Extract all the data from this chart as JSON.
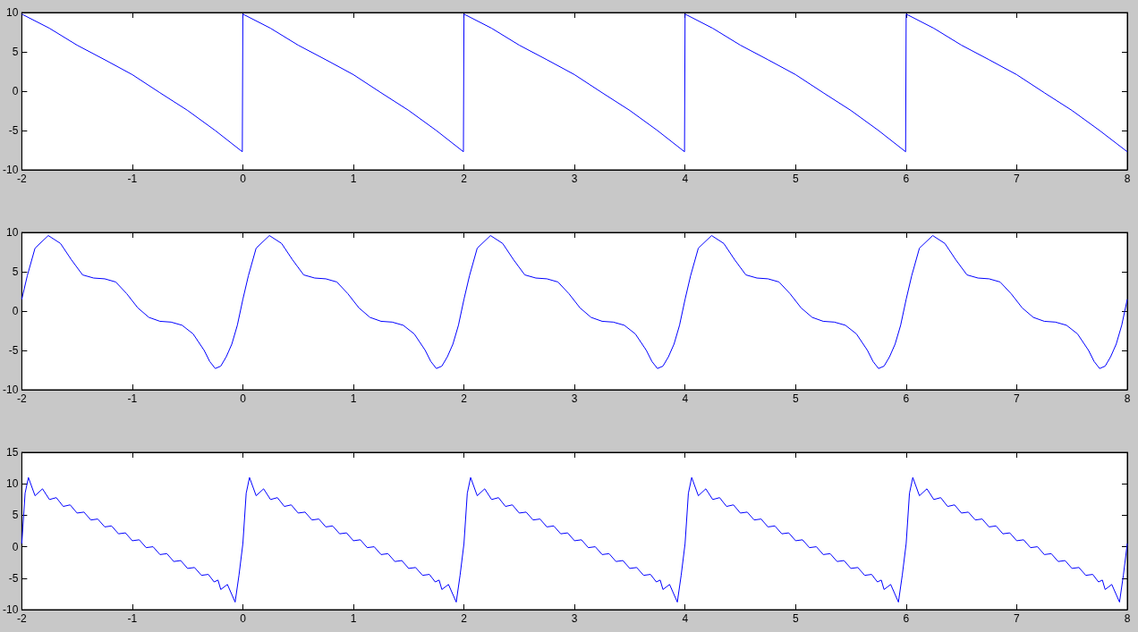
{
  "chart_data": [
    {
      "type": "line",
      "color": "#0000ff",
      "marker": "none",
      "grid": false,
      "xlim": [
        -2,
        8
      ],
      "xticks": [
        -2,
        -1,
        0,
        1,
        2,
        3,
        4,
        5,
        6,
        7,
        8
      ],
      "ylim": [
        -10,
        10
      ],
      "yticks": [
        -10,
        -5,
        0,
        5,
        10
      ],
      "x": [
        -2,
        -1.75,
        -1.5,
        -1.25,
        -1,
        -0.75,
        -0.5,
        -0.25,
        -0.005,
        0,
        0.25,
        0.5,
        0.75,
        1,
        1.25,
        1.5,
        1.75,
        1.995,
        2,
        2.25,
        2.5,
        2.75,
        3,
        3.25,
        3.5,
        3.75,
        3.995,
        4,
        4.25,
        4.5,
        4.75,
        5,
        5.25,
        5.5,
        5.75,
        5.995,
        6,
        6.25,
        6.5,
        6.75,
        7,
        7.25,
        7.5,
        7.75,
        8
      ],
      "values": [
        9.8,
        8.0,
        5.85,
        4.0,
        2.1,
        -0.2,
        -2.45,
        -5.0,
        -7.7,
        9.8,
        8.0,
        5.85,
        4.0,
        2.1,
        -0.2,
        -2.45,
        -5.0,
        -7.7,
        9.8,
        8.0,
        5.85,
        4.0,
        2.1,
        -0.2,
        -2.45,
        -5.0,
        -7.7,
        9.8,
        8.0,
        5.85,
        4.0,
        2.1,
        -0.2,
        -2.45,
        -5.0,
        -7.7,
        9.8,
        8.0,
        5.85,
        4.0,
        2.1,
        -0.2,
        -2.45,
        -5.0,
        -7.7
      ]
    },
    {
      "type": "line",
      "color": "#0000ff",
      "marker": "none",
      "grid": false,
      "xlim": [
        -2,
        8
      ],
      "xticks": [
        -2,
        -1,
        0,
        1,
        2,
        3,
        4,
        5,
        6,
        7,
        8
      ],
      "ylim": [
        -10,
        10
      ],
      "yticks": [
        -10,
        -5,
        0,
        5,
        10
      ],
      "x": [
        -2,
        -1.95,
        -1.88,
        -1.76,
        -1.65,
        -1.55,
        -1.45,
        -1.35,
        -1.25,
        -1.15,
        -1.05,
        -0.95,
        -0.85,
        -0.75,
        -0.65,
        -0.55,
        -0.45,
        -0.35,
        -0.3,
        -0.25,
        -0.2,
        -0.15,
        -0.1,
        -0.05,
        0,
        0.05,
        0.12,
        0.24,
        0.35,
        0.45,
        0.55,
        0.65,
        0.75,
        0.85,
        0.95,
        1.05,
        1.15,
        1.25,
        1.35,
        1.45,
        1.55,
        1.65,
        1.7,
        1.75,
        1.8,
        1.85,
        1.9,
        1.95,
        2,
        2.05,
        2.12,
        2.24,
        2.35,
        2.45,
        2.55,
        2.65,
        2.75,
        2.85,
        2.95,
        3.05,
        3.15,
        3.25,
        3.35,
        3.45,
        3.55,
        3.65,
        3.7,
        3.75,
        3.8,
        3.85,
        3.9,
        3.95,
        4,
        4.05,
        4.12,
        4.24,
        4.35,
        4.45,
        4.55,
        4.65,
        4.75,
        4.85,
        4.95,
        5.05,
        5.15,
        5.25,
        5.35,
        5.45,
        5.55,
        5.65,
        5.7,
        5.75,
        5.8,
        5.85,
        5.9,
        5.95,
        6,
        6.05,
        6.12,
        6.24,
        6.35,
        6.45,
        6.55,
        6.65,
        6.75,
        6.85,
        6.95,
        7.05,
        7.15,
        7.25,
        7.35,
        7.45,
        7.55,
        7.65,
        7.7,
        7.75,
        7.8,
        7.85,
        7.9,
        7.95,
        8
      ],
      "values": [
        1.5,
        4.5,
        8.0,
        9.6,
        8.6,
        6.5,
        4.6,
        4.2,
        4.1,
        3.7,
        2.2,
        0.4,
        -0.8,
        -1.3,
        -1.4,
        -1.8,
        -2.9,
        -5.0,
        -6.4,
        -7.3,
        -7.0,
        -5.8,
        -4.2,
        -1.8,
        1.5,
        4.5,
        8.0,
        9.6,
        8.6,
        6.5,
        4.6,
        4.2,
        4.1,
        3.7,
        2.2,
        0.4,
        -0.8,
        -1.3,
        -1.4,
        -1.8,
        -2.9,
        -5.0,
        -6.4,
        -7.3,
        -7.0,
        -5.8,
        -4.2,
        -1.8,
        1.5,
        4.5,
        8.0,
        9.6,
        8.6,
        6.5,
        4.6,
        4.2,
        4.1,
        3.7,
        2.2,
        0.4,
        -0.8,
        -1.3,
        -1.4,
        -1.8,
        -2.9,
        -5.0,
        -6.4,
        -7.3,
        -7.0,
        -5.8,
        -4.2,
        -1.8,
        1.5,
        4.5,
        8.0,
        9.6,
        8.6,
        6.5,
        4.6,
        4.2,
        4.1,
        3.7,
        2.2,
        0.4,
        -0.8,
        -1.3,
        -1.4,
        -1.8,
        -2.9,
        -5.0,
        -6.4,
        -7.3,
        -7.0,
        -5.8,
        -4.2,
        -1.8,
        1.5,
        4.5,
        8.0,
        9.6,
        8.6,
        6.5,
        4.6,
        4.2,
        4.1,
        3.7,
        2.2,
        0.4,
        -0.8,
        -1.3,
        -1.4,
        -1.8,
        -2.9,
        -5.0,
        -6.4,
        -7.3,
        -7.0,
        -5.8,
        -4.2,
        -1.8,
        1.5
      ]
    },
    {
      "type": "line",
      "color": "#0000ff",
      "marker": "none",
      "grid": false,
      "xlim": [
        -2,
        8
      ],
      "xticks": [
        -2,
        -1,
        0,
        1,
        2,
        3,
        4,
        5,
        6,
        7,
        8
      ],
      "ylim": [
        -10,
        15
      ],
      "yticks": [
        -10,
        -5,
        0,
        5,
        10,
        15
      ],
      "x": [
        -2,
        -1.97,
        -1.94,
        -1.88,
        -1.8125,
        -1.75,
        -1.6875,
        -1.625,
        -1.5625,
        -1.5,
        -1.4375,
        -1.375,
        -1.3125,
        -1.25,
        -1.1875,
        -1.125,
        -1.0625,
        -1,
        -0.9375,
        -0.875,
        -0.8125,
        -0.75,
        -0.6875,
        -0.625,
        -0.5625,
        -0.5,
        -0.4375,
        -0.375,
        -0.3125,
        -0.26,
        -0.225,
        -0.2,
        -0.14,
        -0.07,
        -0.035,
        0,
        0.03,
        0.06,
        0.12,
        0.1875,
        0.25,
        0.3125,
        0.375,
        0.4375,
        0.5,
        0.5625,
        0.625,
        0.6875,
        0.75,
        0.8125,
        0.875,
        0.9375,
        1,
        1.0625,
        1.125,
        1.1875,
        1.25,
        1.3125,
        1.375,
        1.4375,
        1.5,
        1.5625,
        1.625,
        1.6875,
        1.74,
        1.775,
        1.8,
        1.86,
        1.93,
        1.965,
        2,
        2.03,
        2.06,
        2.12,
        2.1875,
        2.25,
        2.3125,
        2.375,
        2.4375,
        2.5,
        2.5625,
        2.625,
        2.6875,
        2.75,
        2.8125,
        2.875,
        2.9375,
        3,
        3.0625,
        3.125,
        3.1875,
        3.25,
        3.3125,
        3.375,
        3.4375,
        3.5,
        3.5625,
        3.625,
        3.6875,
        3.74,
        3.775,
        3.8,
        3.86,
        3.93,
        3.965,
        4,
        4.03,
        4.06,
        4.12,
        4.1875,
        4.25,
        4.3125,
        4.375,
        4.4375,
        4.5,
        4.5625,
        4.625,
        4.6875,
        4.75,
        4.8125,
        4.875,
        4.9375,
        5,
        5.0625,
        5.125,
        5.1875,
        5.25,
        5.3125,
        5.375,
        5.4375,
        5.5,
        5.5625,
        5.625,
        5.6875,
        5.74,
        5.775,
        5.8,
        5.86,
        5.93,
        5.965,
        6,
        6.03,
        6.06,
        6.12,
        6.1875,
        6.25,
        6.3125,
        6.375,
        6.4375,
        6.5,
        6.5625,
        6.625,
        6.6875,
        6.75,
        6.8125,
        6.875,
        6.9375,
        7,
        7.0625,
        7.125,
        7.1875,
        7.25,
        7.3125,
        7.375,
        7.4375,
        7.5,
        7.5625,
        7.625,
        7.6875,
        7.74,
        7.775,
        7.8,
        7.86,
        7.93,
        7.965,
        8
      ],
      "values": [
        0.5,
        8.5,
        11.0,
        8.1,
        9.2,
        7.5,
        7.8,
        6.4,
        6.65,
        5.35,
        5.5,
        4.25,
        4.4,
        3.15,
        3.3,
        2.05,
        2.2,
        0.95,
        1.1,
        -0.15,
        0,
        -1.25,
        -1.1,
        -2.35,
        -2.2,
        -3.45,
        -3.3,
        -4.55,
        -4.4,
        -5.6,
        -5.3,
        -6.8,
        -6.0,
        -8.8,
        -4.5,
        0.5,
        8.5,
        11.0,
        8.1,
        9.2,
        7.5,
        7.8,
        6.4,
        6.65,
        5.35,
        5.5,
        4.25,
        4.4,
        3.15,
        3.3,
        2.05,
        2.2,
        0.95,
        1.1,
        -0.15,
        0,
        -1.25,
        -1.1,
        -2.35,
        -2.2,
        -3.45,
        -3.3,
        -4.55,
        -4.4,
        -5.6,
        -5.3,
        -6.8,
        -6.0,
        -8.8,
        -4.5,
        0.5,
        8.5,
        11.0,
        8.1,
        9.2,
        7.5,
        7.8,
        6.4,
        6.65,
        5.35,
        5.5,
        4.25,
        4.4,
        3.15,
        3.3,
        2.05,
        2.2,
        0.95,
        1.1,
        -0.15,
        0,
        -1.25,
        -1.1,
        -2.35,
        -2.2,
        -3.45,
        -3.3,
        -4.55,
        -4.4,
        -5.6,
        -5.3,
        -6.8,
        -6.0,
        -8.8,
        -4.5,
        0.5,
        8.5,
        11.0,
        8.1,
        9.2,
        7.5,
        7.8,
        6.4,
        6.65,
        5.35,
        5.5,
        4.25,
        4.4,
        3.15,
        3.3,
        2.05,
        2.2,
        0.95,
        1.1,
        -0.15,
        0,
        -1.25,
        -1.1,
        -2.35,
        -2.2,
        -3.45,
        -3.3,
        -4.55,
        -4.4,
        -5.6,
        -5.3,
        -6.8,
        -6.0,
        -8.8,
        -4.5,
        0.5,
        8.5,
        11.0,
        8.1,
        9.2,
        7.5,
        7.8,
        6.4,
        6.65,
        5.35,
        5.5,
        4.25,
        4.4,
        3.15,
        3.3,
        2.05,
        2.2,
        0.95,
        1.1,
        -0.15,
        0,
        -1.25,
        -1.1,
        -2.35,
        -2.2,
        -3.45,
        -3.3,
        -4.55,
        -4.4,
        -5.6,
        -5.3,
        -6.8,
        -6.0,
        -8.8,
        -4.5,
        0.5
      ]
    }
  ]
}
